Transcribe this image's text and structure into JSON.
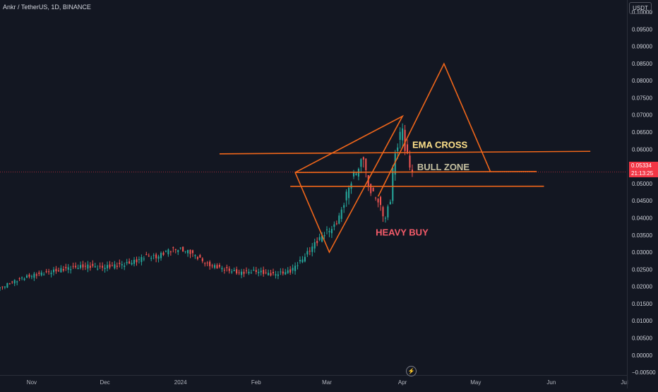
{
  "header": {
    "symbol_title": "Ankr / TetherUS, 1D, BINANCE",
    "currency": "USDT"
  },
  "price_tag": {
    "price": "0.05334",
    "countdown": "21:13:25"
  },
  "colors": {
    "background": "#131722",
    "up_candle": "#26a69a",
    "down_candle": "#ef5350",
    "drawing": "#f0661a",
    "price_line": "#f23645",
    "axis_text": "#d1d4dc",
    "time_text": "#b2b5be",
    "ema_text": "#ffe28a",
    "bull_text": "#c5c0a0",
    "heavy_text": "#f45b69"
  },
  "icons": {
    "logo": "tradingview-logo-icon"
  },
  "chart_data": {
    "type": "candlestick",
    "title": "Ankr / TetherUS, 1D, BINANCE",
    "ylim": [
      -0.0058,
      0.1035
    ],
    "y_ticks": [
      "0.10000",
      "0.09500",
      "0.09000",
      "0.08500",
      "0.08000",
      "0.07500",
      "0.07000",
      "0.06500",
      "0.06000",
      "0.05500",
      "0.05000",
      "0.04500",
      "0.04000",
      "0.03500",
      "0.03000",
      "0.02500",
      "0.02000",
      "0.01500",
      "0.01000",
      "0.00500",
      "0.00000",
      "−0.00500"
    ],
    "y_tick_values": [
      0.1,
      0.095,
      0.09,
      0.085,
      0.08,
      0.075,
      0.07,
      0.065,
      0.06,
      0.055,
      0.05,
      0.045,
      0.04,
      0.035,
      0.03,
      0.025,
      0.02,
      0.015,
      0.01,
      0.005,
      0,
      -0.005
    ],
    "x_ticks": [
      "Nov",
      "Dec",
      "2024",
      "Feb",
      "Mar",
      "Apr",
      "May",
      "Jun",
      "Jul"
    ],
    "x_tick_dates": [
      "2023-11-01",
      "2023-12-01",
      "2024-01-01",
      "2024-02-01",
      "2024-03-01",
      "2024-04-01",
      "2024-05-01",
      "2024-06-01",
      "2024-07-01"
    ],
    "x_start": "2023-10-19",
    "x_end": "2024-07-02",
    "last_price": 0.05334,
    "series": [
      {
        "type": "candlestick",
        "close_points": [
          [
            "2023-10-19",
            0.0195
          ],
          [
            "2023-10-23",
            0.021
          ],
          [
            "2023-10-28",
            0.0225
          ],
          [
            "2023-11-03",
            0.0235
          ],
          [
            "2023-11-10",
            0.0245
          ],
          [
            "2023-11-17",
            0.0255
          ],
          [
            "2023-11-24",
            0.026
          ],
          [
            "2023-11-29",
            0.0255
          ],
          [
            "2023-12-04",
            0.026
          ],
          [
            "2023-12-09",
            0.0265
          ],
          [
            "2023-12-14",
            0.0275
          ],
          [
            "2023-12-18",
            0.029
          ],
          [
            "2023-12-22",
            0.0285
          ],
          [
            "2023-12-27",
            0.0305
          ],
          [
            "2023-12-31",
            0.031
          ],
          [
            "2024-01-05",
            0.03
          ],
          [
            "2024-01-12",
            0.0265
          ],
          [
            "2024-01-17",
            0.0255
          ],
          [
            "2024-01-25",
            0.024
          ],
          [
            "2024-02-01",
            0.0245
          ],
          [
            "2024-02-08",
            0.0235
          ],
          [
            "2024-02-15",
            0.0245
          ],
          [
            "2024-02-20",
            0.028
          ],
          [
            "2024-02-25",
            0.0325
          ],
          [
            "2024-02-29",
            0.0355
          ],
          [
            "2024-03-04",
            0.0375
          ],
          [
            "2024-03-07",
            0.042
          ],
          [
            "2024-03-09",
            0.047
          ],
          [
            "2024-03-12",
            0.0525
          ],
          [
            "2024-03-14",
            0.0545
          ],
          [
            "2024-03-16",
            0.058
          ],
          [
            "2024-03-18",
            0.049
          ],
          [
            "2024-03-20",
            0.047
          ],
          [
            "2024-03-22",
            0.045
          ],
          [
            "2024-03-24",
            0.041
          ],
          [
            "2024-03-25",
            0.04
          ],
          [
            "2024-03-27",
            0.0455
          ],
          [
            "2024-03-28",
            0.054
          ],
          [
            "2024-03-29",
            0.0585
          ],
          [
            "2024-03-30",
            0.0615
          ],
          [
            "2024-04-01",
            0.0665
          ],
          [
            "2024-04-02",
            0.06
          ],
          [
            "2024-04-04",
            0.0555
          ],
          [
            "2024-04-05",
            0.05334
          ]
        ]
      }
    ],
    "drawings": [
      {
        "type": "line",
        "points": [
          [
            "2024-01-17",
            0.05866
          ],
          [
            "2024-06-17",
            0.0594
          ]
        ]
      },
      {
        "type": "line",
        "points": [
          [
            "2024-02-17",
            0.05324
          ],
          [
            "2024-05-26",
            0.05352
          ]
        ]
      },
      {
        "type": "line",
        "points": [
          [
            "2024-02-15",
            0.0492
          ],
          [
            "2024-05-29",
            0.04922
          ]
        ]
      },
      {
        "type": "polyline",
        "points": [
          [
            "2024-02-17",
            0.05324
          ],
          [
            "2024-03-02",
            0.03
          ],
          [
            "2024-04-01",
            0.06963
          ],
          [
            "2024-02-17",
            0.05324
          ]
        ]
      },
      {
        "type": "polyline",
        "points": [
          [
            "2024-03-22",
            0.04622
          ],
          [
            "2024-04-18",
            0.08492
          ],
          [
            "2024-05-07",
            0.05352
          ]
        ]
      }
    ],
    "annotations": [
      {
        "text": "EMA CROSS",
        "x": "2024-04-05",
        "y": 0.0604
      },
      {
        "text": "BULL ZONE",
        "x": "2024-04-07",
        "y": 0.05385
      },
      {
        "text": "HEAVY BUY",
        "x": "2024-03-21",
        "y": 0.0349
      }
    ]
  }
}
